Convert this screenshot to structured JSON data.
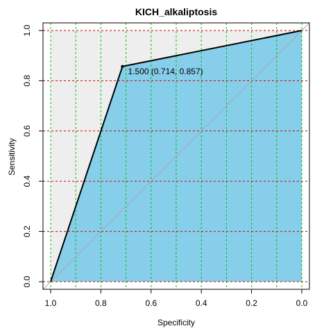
{
  "chart_data": {
    "type": "line",
    "title": "KICH_alkaliptosis",
    "xlabel": "Specificity",
    "ylabel": "Sensitivity",
    "xlim": [
      1.0,
      0.0
    ],
    "ylim": [
      0.0,
      1.0
    ],
    "x_reversed": true,
    "x_ticks": [
      "1.0",
      "0.8",
      "0.6",
      "0.4",
      "0.2",
      "0.0"
    ],
    "y_ticks": [
      "0.0",
      "0.2",
      "0.4",
      "0.6",
      "0.8",
      "1.0"
    ],
    "series": [
      {
        "x": [
          1.0,
          0.714,
          0.0
        ],
        "y": [
          0.0,
          0.857,
          1.0
        ]
      }
    ],
    "best_threshold": {
      "specificity": 0.714,
      "sensitivity": 0.857,
      "label": "1.500 (0.714, 0.857)"
    },
    "grid": true,
    "colors": {
      "auc_fill": "#87CEEB",
      "upper_fill": "#EEEEEE",
      "curve": "#000000",
      "diagonal": "#AAAAAA",
      "vertical_grid": "#00C000",
      "horizontal_grid": "#CC0000"
    }
  }
}
